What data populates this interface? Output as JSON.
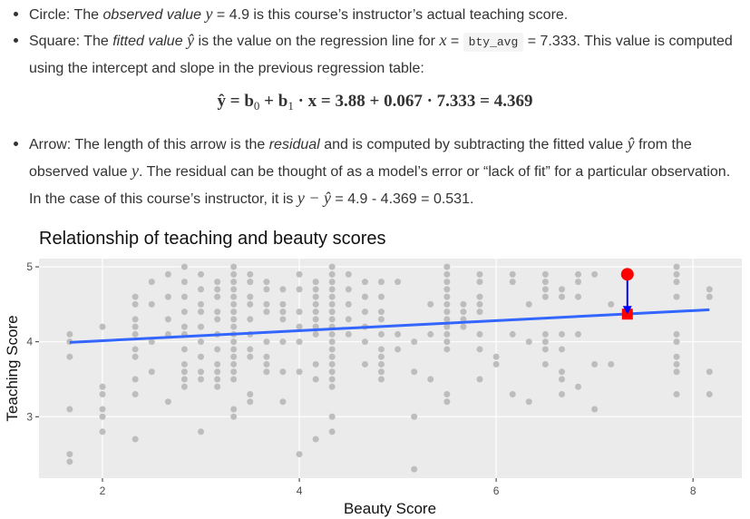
{
  "bullets": [
    [
      {
        "text": "Circle: The ",
        "style": "normal"
      },
      {
        "text": "observed value",
        "style": "italic"
      },
      {
        "text": " ",
        "style": "normal"
      },
      {
        "text": "y",
        "style": "math"
      },
      {
        "text": " = 4.9 is this course’s instructor’s actual teaching score.",
        "style": "normal"
      }
    ],
    [
      {
        "text": "Square: The ",
        "style": "normal"
      },
      {
        "text": "fitted value",
        "style": "italic"
      },
      {
        "text": " ",
        "style": "normal"
      },
      {
        "text": "ŷ",
        "style": "math"
      },
      {
        "text": " is the value on the regression line for ",
        "style": "normal"
      },
      {
        "text": "x",
        "style": "math"
      },
      {
        "text": " = ",
        "style": "normal"
      },
      {
        "text": "bty_avg",
        "style": "code"
      },
      {
        "text": " = 7.333. This value is computed using the intercept and slope in the previous regression table:",
        "style": "normal"
      }
    ],
    [
      {
        "text": "Arrow: The length of this arrow is the ",
        "style": "normal"
      },
      {
        "text": "residual",
        "style": "italic"
      },
      {
        "text": " and is computed by subtracting the fitted value ",
        "style": "normal"
      },
      {
        "text": "ŷ",
        "style": "math"
      },
      {
        "text": " from the observed value ",
        "style": "normal"
      },
      {
        "text": "y",
        "style": "math"
      },
      {
        "text": ". The residual can be thought of as a model’s error or “lack of fit” for a particular observation. In the case of this course’s instructor, it is ",
        "style": "normal"
      },
      {
        "text": "y − ŷ",
        "style": "math"
      },
      {
        "text": " = 4.9 - 4.369 = 0.531.",
        "style": "normal"
      }
    ]
  ],
  "equation": [
    {
      "text": "ŷ = b",
      "style": "math"
    },
    {
      "text": "0",
      "style": "sub"
    },
    {
      "text": " + b",
      "style": "math"
    },
    {
      "text": "1",
      "style": "sub"
    },
    {
      "text": " · x = 3.88 + 0.067 · 7.333 = 4.369",
      "style": "math"
    }
  ],
  "chart_data": {
    "type": "scatter",
    "title": "Relationship of teaching and beauty scores",
    "x_label": "Beauty Score",
    "y_label": "Teaching Score",
    "xlim": [
      1.355,
      8.496
    ],
    "ylim": [
      2.18,
      5.11
    ],
    "xticks": [
      2,
      4,
      6,
      8
    ],
    "yticks": [
      3,
      4,
      5
    ],
    "grid": true,
    "point_color": "#bdbdbd",
    "columns": [
      {
        "x": 1.667,
        "y": [
          4.1,
          4.0,
          3.8,
          3.1,
          2.5,
          2.4
        ]
      },
      {
        "x": 2,
        "y": [
          4.2,
          3.4,
          3.3,
          3.1,
          3.0,
          2.8
        ]
      },
      {
        "x": 2.333,
        "y": [
          4.6,
          4.5,
          4.3,
          4.2,
          4.1,
          3.9,
          3.8,
          3.5,
          3.3,
          2.7
        ]
      },
      {
        "x": 2.5,
        "y": [
          4.8,
          4.5,
          4.0,
          3.6
        ]
      },
      {
        "x": 2.667,
        "y": [
          4.9,
          4.6,
          4.3,
          4.1,
          3.2
        ]
      },
      {
        "x": 2.833,
        "y": [
          5.0,
          4.8,
          4.6,
          4.4,
          4.2,
          4.1,
          3.9,
          3.7,
          3.6,
          3.5,
          3.4
        ]
      },
      {
        "x": 3,
        "y": [
          4.9,
          4.7,
          4.5,
          4.4,
          4.2,
          4.0,
          3.8,
          3.6,
          3.5,
          2.8
        ]
      },
      {
        "x": 3.167,
        "y": [
          4.8,
          4.7,
          4.6,
          4.4,
          4.3,
          4.1,
          3.9,
          3.7,
          3.6,
          3.5,
          3.4
        ]
      },
      {
        "x": 3.333,
        "y": [
          5.0,
          4.9,
          4.8,
          4.7,
          4.6,
          4.5,
          4.4,
          4.3,
          4.2,
          4.1,
          4.0,
          3.9,
          3.8,
          3.7,
          3.6,
          3.5,
          3.1,
          3.0
        ]
      },
      {
        "x": 3.5,
        "y": [
          4.9,
          4.8,
          4.6,
          4.5,
          4.3,
          4.1,
          3.9,
          3.8,
          3.3,
          3.2
        ]
      },
      {
        "x": 3.667,
        "y": [
          4.8,
          4.7,
          4.5,
          4.4,
          4.0,
          3.8,
          3.7,
          3.6
        ]
      },
      {
        "x": 3.833,
        "y": [
          4.7,
          4.5,
          4.4,
          4.3,
          4.0,
          3.6,
          3.2
        ]
      },
      {
        "x": 4,
        "y": [
          4.9,
          4.7,
          4.4,
          4.2,
          4.0,
          3.6,
          2.5
        ]
      },
      {
        "x": 4.167,
        "y": [
          4.8,
          4.7,
          4.6,
          4.5,
          4.4,
          4.3,
          4.2,
          4.1,
          3.7,
          3.5,
          2.7
        ]
      },
      {
        "x": 4.333,
        "y": [
          5.0,
          4.9,
          4.8,
          4.7,
          4.6,
          4.5,
          4.4,
          4.3,
          4.2,
          4.1,
          4.0,
          3.9,
          3.8,
          3.7,
          3.6,
          3.5,
          3.4,
          3.0,
          2.8
        ]
      },
      {
        "x": 4.5,
        "y": [
          4.9,
          4.7,
          4.5,
          4.3,
          4.1
        ]
      },
      {
        "x": 4.667,
        "y": [
          4.8,
          4.6,
          4.4,
          4.2,
          4.0,
          3.7
        ]
      },
      {
        "x": 4.833,
        "y": [
          4.8,
          4.6,
          4.4,
          4.3,
          4.1,
          3.9,
          3.8,
          3.7,
          3.6,
          3.5
        ]
      },
      {
        "x": 5,
        "y": [
          4.8,
          4.1,
          3.9
        ]
      },
      {
        "x": 5.167,
        "y": [
          4.0,
          3.6,
          3.0,
          2.3
        ]
      },
      {
        "x": 5.333,
        "y": [
          4.5,
          4.1,
          3.5
        ]
      },
      {
        "x": 5.5,
        "y": [
          5.0,
          4.9,
          4.8,
          4.7,
          4.6,
          4.5,
          4.4,
          4.3,
          4.2,
          4.1,
          4.0,
          3.9,
          3.3,
          3.2
        ]
      },
      {
        "x": 5.667,
        "y": [
          4.5,
          4.4,
          4.3,
          4.2
        ]
      },
      {
        "x": 5.833,
        "y": [
          4.9,
          4.8,
          4.6,
          4.5,
          4.4,
          4.1,
          3.9,
          3.5
        ]
      },
      {
        "x": 6,
        "y": [
          3.8,
          3.7
        ]
      },
      {
        "x": 6.167,
        "y": [
          4.9,
          4.8,
          4.1,
          3.3
        ]
      },
      {
        "x": 6.333,
        "y": [
          4.5,
          4.0,
          3.2
        ]
      },
      {
        "x": 6.5,
        "y": [
          4.9,
          4.8,
          4.7,
          4.6,
          4.1,
          4.0,
          3.9,
          3.7
        ]
      },
      {
        "x": 6.667,
        "y": [
          4.7,
          4.6,
          4.1,
          3.9,
          3.6,
          3.5,
          3.3
        ]
      },
      {
        "x": 6.833,
        "y": [
          4.9,
          4.8,
          4.6,
          4.1,
          3.4
        ]
      },
      {
        "x": 7,
        "y": [
          4.9,
          3.7,
          3.1
        ]
      },
      {
        "x": 7.167,
        "y": [
          4.5,
          3.7
        ]
      },
      {
        "x": 7.833,
        "y": [
          5.0,
          4.9,
          4.8,
          4.6,
          4.1,
          4.0,
          3.8,
          3.7,
          3.6,
          3.3
        ]
      },
      {
        "x": 8.167,
        "y": [
          4.7,
          4.6,
          3.6,
          3.3
        ]
      }
    ],
    "line": {
      "x": [
        1.667,
        8.167
      ],
      "y": [
        3.992,
        4.427
      ],
      "color": "#3366ff"
    },
    "observed": {
      "x": 7.333,
      "y": 4.9,
      "color": "#ff0000"
    },
    "fitted": {
      "x": 7.333,
      "y": 4.369,
      "color": "#ff0000"
    },
    "arrow_color": "#0000ff"
  }
}
